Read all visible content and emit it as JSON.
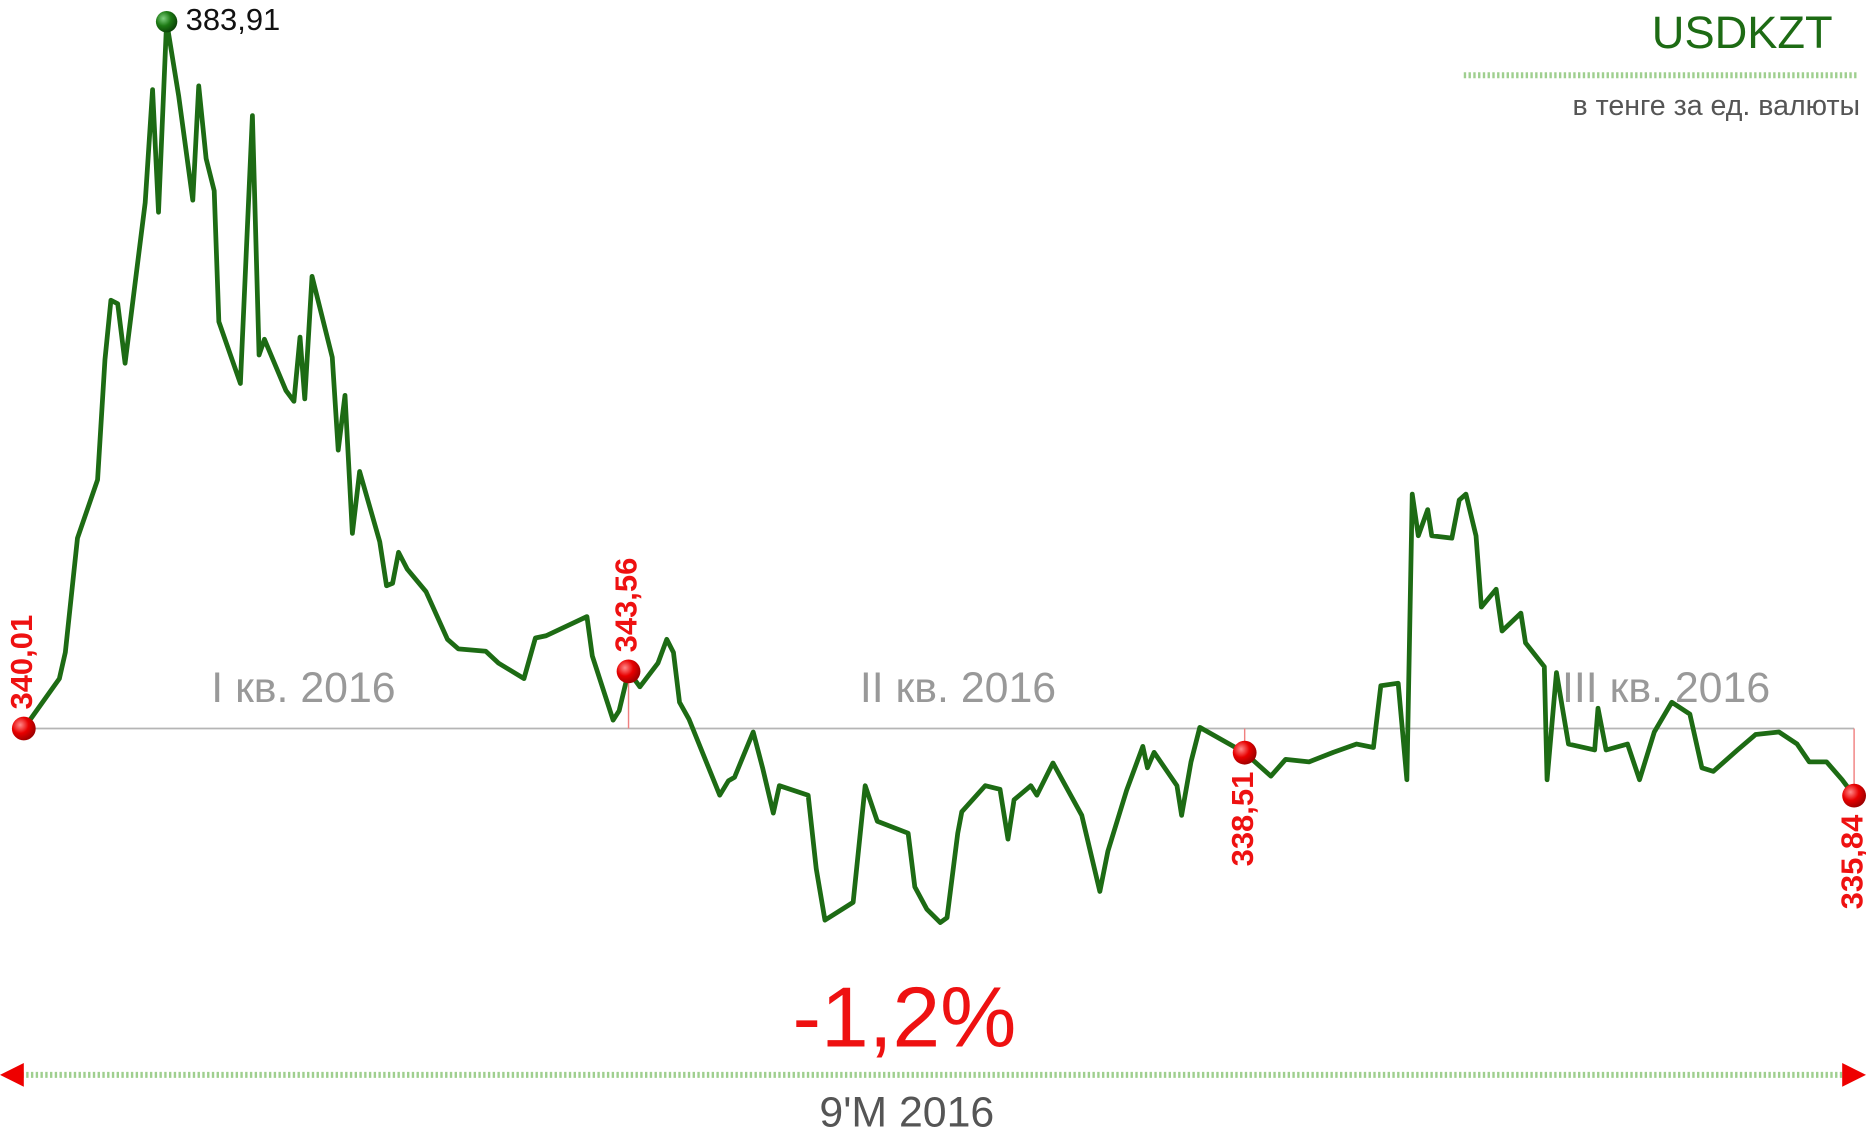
{
  "chart_data": {
    "type": "line",
    "title": "USDKZT",
    "subtitle": "в тенге за ед. валюты",
    "annotations": {
      "change": "-1,2%",
      "period": "9'M 2016",
      "quarters": [
        "I кв. 2016",
        "II кв. 2016",
        "III кв. 2016"
      ]
    },
    "xlim": [
      0,
      273
    ],
    "ylim": [
      327.96,
      383.91
    ],
    "x": [
      0,
      5.3,
      6.2,
      8.0,
      11.0,
      12.1,
      13.0,
      14.0,
      15.1,
      18.1,
      19.2,
      20.1,
      21.3,
      23.1,
      25.2,
      26.1,
      27.2,
      28.4,
      29.1,
      32.3,
      34.1,
      35.1,
      35.9,
      39.1,
      40.3,
      41.2,
      41.9,
      43.0,
      46.0,
      46.9,
      47.9,
      49.0,
      50.1,
      53.1,
      54.1,
      55.0,
      55.9,
      57.2,
      60.0,
      63.2,
      64.8,
      68.9,
      70.8,
      74.6,
      76.3,
      77.9,
      84.0,
      84.8,
      87.9,
      88.8,
      90.2,
      91.9,
      94.6,
      95.9,
      96.9,
      97.8,
      99.2,
      103.8,
      105.1,
      106.0,
      108.8,
      110.2,
      111.8,
      112.7,
      117.0,
      118.2,
      119.5,
      123.7,
      125.5,
      127.3,
      131.9,
      132.9,
      134.7,
      136.7,
      137.7,
      139.3,
      139.9,
      143.4,
      145.6,
      146.8,
      147.7,
      150.2,
      151.1,
      153.5,
      157.8,
      160.5,
      161.7,
      164.5,
      166.9,
      167.6,
      168.6,
      172.0,
      172.7,
      174.1,
      175.4,
      182.1,
      186.0,
      188.2,
      191.7,
      195.3,
      198.8,
      201.3,
      202.4,
      205.0,
      206.3,
      207.1,
      208.0,
      209.4,
      210.0,
      213.0,
      214.1,
      215.1,
      216.6,
      217.4,
      219.6,
      220.5,
      223.3,
      224.0,
      226.8,
      227.2,
      228.6,
      230.4,
      234.3,
      234.8,
      236.0,
      239.2,
      241.0,
      243.2,
      245.8,
      248.5,
      250.3,
      252.0,
      255.6,
      258.3,
      261.8,
      264.5,
      266.3,
      268.9,
      271.2,
      273
    ],
    "series": [
      {
        "color": "#1d6b14",
        "values": [
          340.01,
          343.11,
          344.74,
          351.83,
          355.46,
          362.92,
          366.61,
          366.39,
          362.7,
          372.67,
          379.69,
          372.08,
          383.91,
          379.32,
          372.82,
          379.92,
          375.41,
          373.41,
          365.28,
          361.44,
          378.07,
          363.21,
          364.18,
          361.0,
          360.33,
          364.32,
          360.48,
          368.09,
          363.07,
          357.3,
          360.7,
          352.13,
          355.97,
          351.61,
          348.88,
          349.03,
          350.95,
          349.91,
          348.51,
          345.55,
          344.96,
          344.81,
          344.07,
          343.11,
          345.63,
          345.77,
          346.96,
          344.52,
          340.53,
          341.12,
          343.56,
          342.6,
          344.07,
          345.55,
          344.74,
          341.64,
          340.6,
          335.87,
          336.76,
          336.98,
          339.79,
          337.57,
          334.76,
          336.46,
          335.87,
          331.29,
          328.11,
          329.22,
          336.46,
          334.25,
          333.51,
          330.18,
          328.78,
          327.96,
          328.26,
          333.51,
          334.84,
          336.46,
          336.24,
          333.14,
          335.58,
          336.46,
          335.87,
          337.87,
          334.62,
          329.89,
          332.4,
          336.17,
          338.9,
          337.57,
          338.53,
          336.46,
          334.62,
          337.94,
          340.08,
          338.51,
          337.05,
          338.09,
          337.94,
          338.53,
          339.05,
          338.83,
          342.67,
          342.82,
          336.83,
          354.57,
          351.98,
          353.61,
          351.98,
          351.83,
          354.2,
          354.57,
          351.98,
          347.55,
          348.66,
          346.07,
          347.18,
          345.33,
          343.85,
          336.83,
          343.48,
          339.05,
          338.68,
          341.27,
          338.68,
          339.05,
          336.83,
          339.79,
          341.64,
          340.9,
          337.57,
          337.35,
          338.68,
          339.64,
          339.79,
          339.05,
          337.94,
          337.94,
          336.83,
          335.84
        ],
        "value_labels": [
          "340,01",
          null,
          null,
          null,
          null,
          null,
          null,
          null,
          null,
          null,
          null,
          null,
          "383,91",
          null,
          null,
          null,
          null,
          null,
          null,
          null,
          null,
          null,
          null,
          null,
          null,
          null,
          null,
          null,
          null,
          null,
          null,
          null,
          null,
          null,
          null,
          null,
          null,
          null,
          null,
          null,
          null,
          null,
          null,
          null,
          null,
          null,
          null,
          null,
          null,
          null,
          "343,56",
          null,
          null,
          null,
          null,
          null,
          null,
          null,
          null,
          null,
          null,
          null,
          null,
          null,
          null,
          null,
          null,
          null,
          null,
          null,
          null,
          null,
          null,
          null,
          null,
          null,
          null,
          null,
          null,
          null,
          null,
          null,
          null,
          null,
          null,
          null,
          null,
          null,
          null,
          null,
          null,
          null,
          null,
          null,
          null,
          "338,51",
          null,
          null,
          null,
          null,
          null,
          null,
          null,
          null,
          null,
          null,
          null,
          null,
          null,
          null,
          null,
          null,
          null,
          null,
          null,
          null,
          null,
          null,
          null,
          null,
          null,
          null,
          null,
          null,
          null,
          null,
          null,
          null,
          null,
          null,
          null,
          null,
          null,
          null,
          null,
          null,
          null,
          null,
          null,
          "335,84"
        ]
      }
    ]
  }
}
